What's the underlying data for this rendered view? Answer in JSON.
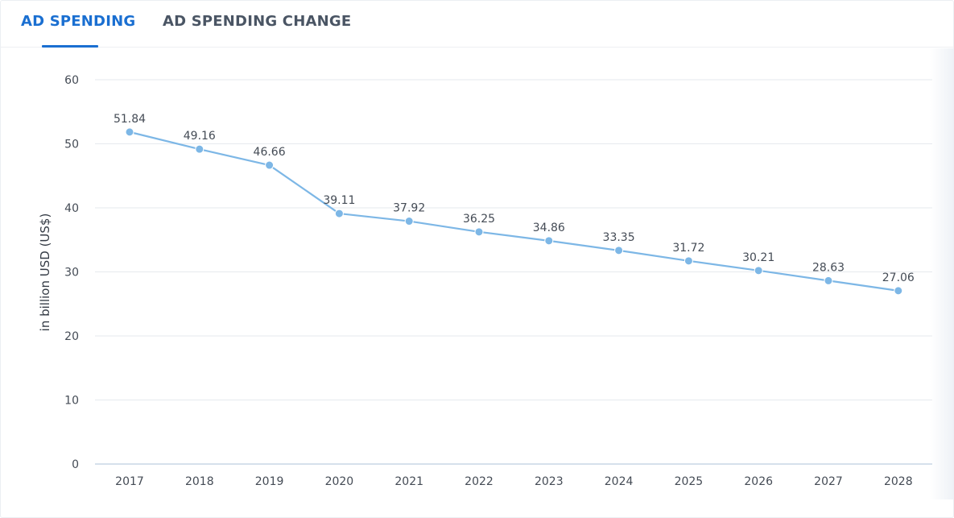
{
  "tabs": [
    {
      "label": "AD SPENDING",
      "active": true
    },
    {
      "label": "AD SPENDING CHANGE",
      "active": false
    }
  ],
  "colors": {
    "accent": "#1a6fd1",
    "line": "#7db7e6",
    "grid": "#e6e9ee",
    "text": "#444b55"
  },
  "chart_data": {
    "type": "line",
    "title": "",
    "xlabel": "",
    "ylabel": "in billion USD (US$)",
    "ylim": [
      0,
      60
    ],
    "yticks": [
      0,
      10,
      20,
      30,
      40,
      50,
      60
    ],
    "grid": true,
    "categories": [
      "2017",
      "2018",
      "2019",
      "2020",
      "2021",
      "2022",
      "2023",
      "2024",
      "2025",
      "2026",
      "2027",
      "2028"
    ],
    "series": [
      {
        "values": [
          51.84,
          49.16,
          46.66,
          39.11,
          37.92,
          36.25,
          34.86,
          33.35,
          31.72,
          30.21,
          28.63,
          27.06
        ],
        "labels": [
          "51.84",
          "49.16",
          "46.66",
          "39.11",
          "37.92",
          "36.25",
          "34.86",
          "33.35",
          "31.72",
          "30.21",
          "28.63",
          "27.06"
        ]
      }
    ]
  }
}
